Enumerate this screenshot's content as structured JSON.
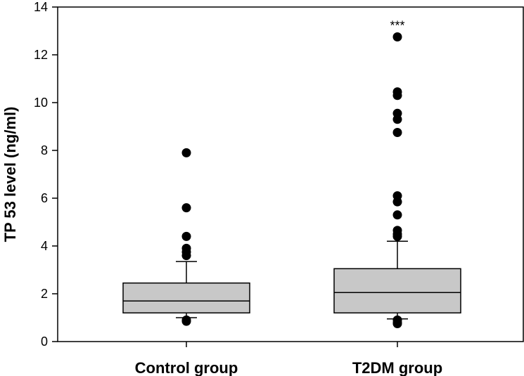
{
  "chart_data": {
    "type": "box",
    "title": "",
    "xlabel": "",
    "ylabel": "TP 53 level (ng/ml)",
    "ylim": [
      0,
      14
    ],
    "yticks": [
      "0",
      "2",
      "4",
      "6",
      "8",
      "10",
      "12",
      "14"
    ],
    "grid": false,
    "box_color": "#c8c8c8",
    "groups": [
      {
        "name": "Control group",
        "whisker_low": 1.0,
        "q1": 1.2,
        "median": 1.7,
        "q3": 2.45,
        "whisker_high": 3.35,
        "outliers": [
          0.85,
          0.9,
          3.6,
          3.75,
          3.9,
          4.4,
          5.6,
          7.9
        ],
        "annotation": ""
      },
      {
        "name": "T2DM group",
        "whisker_low": 0.95,
        "q1": 1.2,
        "median": 2.05,
        "q3": 3.05,
        "whisker_high": 4.2,
        "outliers": [
          0.75,
          0.8,
          0.9,
          4.4,
          4.5,
          4.65,
          5.3,
          5.85,
          6.1,
          8.75,
          9.3,
          9.55,
          10.3,
          10.45,
          12.75
        ],
        "annotation": "***"
      }
    ]
  }
}
